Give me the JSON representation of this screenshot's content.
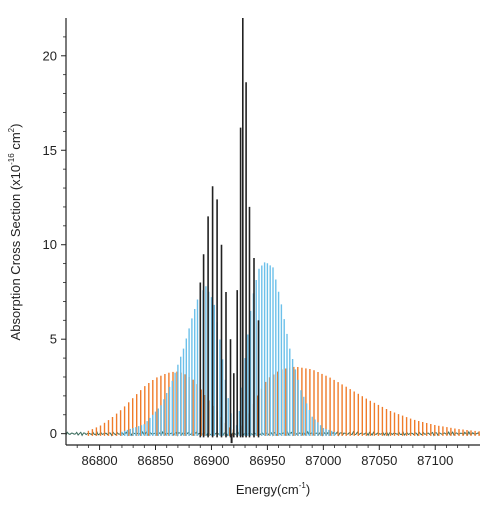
{
  "chart_data": {
    "type": "line",
    "xlabel": {
      "prefix": "Energy(cm",
      "sup": "-1",
      "suffix": ")"
    },
    "ylabel": {
      "prefix": "Absorption Cross Section (x10",
      "sup1": "-16",
      "middle": " cm",
      "sup2": "2",
      "suffix": ")"
    },
    "xlim": [
      86770,
      87140
    ],
    "ylim": [
      -0.6,
      22
    ],
    "xticks": [
      86800,
      86850,
      86900,
      86950,
      87000,
      87050,
      87100
    ],
    "xtick_labels": [
      "86800",
      "86850",
      "86900",
      "86950",
      "87000",
      "87050",
      "87100"
    ],
    "yticks": [
      0,
      5,
      10,
      15,
      20
    ],
    "ytick_labels": [
      "0",
      "5",
      "10",
      "15",
      "20"
    ],
    "grid": false,
    "legend": "none",
    "series": [
      {
        "color": "#f07c2a",
        "envelope": [
          [
            86790,
            0.15
          ],
          [
            86800,
            0.4
          ],
          [
            86810,
            0.8
          ],
          [
            86820,
            1.3
          ],
          [
            86830,
            1.9
          ],
          [
            86840,
            2.5
          ],
          [
            86850,
            2.95
          ],
          [
            86860,
            3.2
          ],
          [
            86868,
            3.3
          ],
          [
            86875,
            3.2
          ],
          [
            86885,
            2.8
          ],
          [
            86895,
            2.0
          ],
          [
            86905,
            1.2
          ],
          [
            86912,
            0.6
          ],
          [
            86918,
            0.2
          ],
          [
            86925,
            0.3
          ],
          [
            86932,
            0.8
          ],
          [
            86940,
            1.9
          ],
          [
            86950,
            2.9
          ],
          [
            86962,
            3.4
          ],
          [
            86975,
            3.55
          ],
          [
            86990,
            3.4
          ],
          [
            87005,
            3.0
          ],
          [
            87020,
            2.5
          ],
          [
            87040,
            1.8
          ],
          [
            87060,
            1.2
          ],
          [
            87080,
            0.75
          ],
          [
            87100,
            0.45
          ],
          [
            87120,
            0.25
          ],
          [
            87140,
            0.12
          ]
        ],
        "line_spacing": 3.6
      },
      {
        "color": "#6cc0ea",
        "envelope": [
          [
            86820,
            0.1
          ],
          [
            86840,
            0.5
          ],
          [
            86855,
            1.5
          ],
          [
            86865,
            2.8
          ],
          [
            86875,
            4.5
          ],
          [
            86882,
            6.0
          ],
          [
            86888,
            7.2
          ],
          [
            86895,
            7.8
          ],
          [
            86902,
            7.0
          ],
          [
            86908,
            4.8
          ],
          [
            86914,
            2.2
          ],
          [
            86919,
            0.6
          ],
          [
            86922,
            0.3
          ],
          [
            86926,
            1.5
          ],
          [
            86930,
            4.0
          ],
          [
            86936,
            7.0
          ],
          [
            86942,
            8.7
          ],
          [
            86948,
            9.1
          ],
          [
            86955,
            8.8
          ],
          [
            86962,
            7.0
          ],
          [
            86970,
            4.5
          ],
          [
            86980,
            2.3
          ],
          [
            86990,
            0.9
          ],
          [
            87000,
            0.3
          ],
          [
            87010,
            0.1
          ]
        ],
        "line_spacing": 2.5
      },
      {
        "color": "#222222",
        "peaks": [
          [
            86890,
            8.0
          ],
          [
            86893,
            9.5
          ],
          [
            86897,
            11.5
          ],
          [
            86901,
            13.1
          ],
          [
            86905,
            12.4
          ],
          [
            86909,
            10.0
          ],
          [
            86913,
            7.5
          ],
          [
            86917,
            5.0
          ],
          [
            86920,
            3.2
          ],
          [
            86923,
            7.6
          ],
          [
            86926,
            16.2
          ],
          [
            86928,
            22.0
          ],
          [
            86931,
            18.6
          ],
          [
            86934,
            12.0
          ],
          [
            86938,
            9.3
          ],
          [
            86942,
            6.0
          ]
        ],
        "dip": [
          86918,
          -0.5
        ]
      }
    ]
  }
}
